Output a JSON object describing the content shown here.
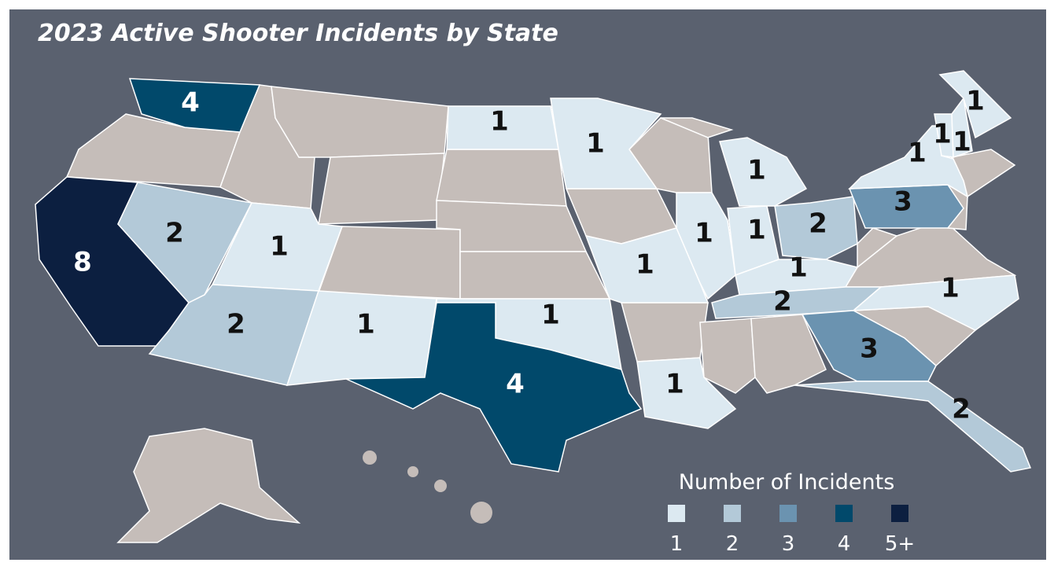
{
  "title": "2023 Active Shooter Incidents by State",
  "states": [
    {
      "count": 4
    },
    {
      "count": 8
    },
    {
      "count": 2
    },
    {
      "count": 1
    },
    {
      "count": 2
    },
    {
      "count": 1
    },
    {
      "count": 1
    },
    {
      "count": 1
    },
    {
      "count": 4
    },
    {
      "count": 1
    },
    {
      "count": 1
    },
    {
      "count": 1
    },
    {
      "count": 1
    },
    {
      "count": 1
    },
    {
      "count": 1
    },
    {
      "count": 2
    },
    {
      "count": 1
    },
    {
      "count": 2
    },
    {
      "count": 3
    },
    {
      "count": 2
    },
    {
      "count": 1
    },
    {
      "count": 3
    },
    {
      "count": 1
    },
    {
      "count": 1
    },
    {
      "count": 1
    },
    {
      "count": 1
    }
  ],
  "legend": {
    "title": "Number of Incidents",
    "items": [
      {
        "label": "1",
        "color": "#dce9f1"
      },
      {
        "label": "2",
        "color": "#b3c9d8"
      },
      {
        "label": "3",
        "color": "#6b93b0"
      },
      {
        "label": "4",
        "color": "#01496b"
      },
      {
        "label": "5+",
        "color": "#0c1f40"
      }
    ]
  }
}
